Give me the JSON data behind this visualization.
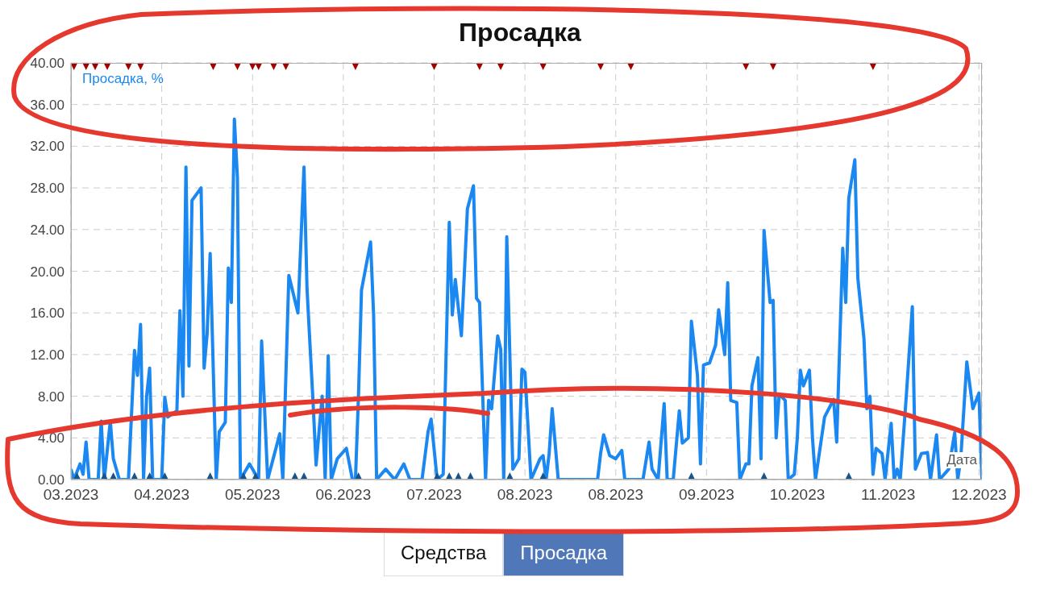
{
  "chart_data": {
    "type": "line",
    "title": "Просадка",
    "xlabel": "Дата",
    "legend": "top left",
    "grid": true,
    "xlim": [
      "2023-03-04",
      "2023-12-30"
    ],
    "ylim": [
      0,
      40
    ],
    "xticks": [
      {
        "value": "2023-03-04",
        "label": "03.2023"
      },
      {
        "value": "2023-04-03",
        "label": "04.2023"
      },
      {
        "value": "2023-05-03",
        "label": "05.2023"
      },
      {
        "value": "2023-06-02",
        "label": "06.2023"
      },
      {
        "value": "2023-07-02",
        "label": "07.2023"
      },
      {
        "value": "2023-08-01",
        "label": "08.2023"
      },
      {
        "value": "2023-08-31",
        "label": "08.2023"
      },
      {
        "value": "2023-09-30",
        "label": "09.2023"
      },
      {
        "value": "2023-10-30",
        "label": "10.2023"
      },
      {
        "value": "2023-11-29",
        "label": "11.2023"
      },
      {
        "value": "2023-12-29",
        "label": "12.2023"
      }
    ],
    "yticks": [
      {
        "value": 0,
        "label": "0.00"
      },
      {
        "value": 4,
        "label": "4.00"
      },
      {
        "value": 8,
        "label": "8.00"
      },
      {
        "value": 12,
        "label": "12.00"
      },
      {
        "value": 16,
        "label": "16.00"
      },
      {
        "value": 20,
        "label": "20.00"
      },
      {
        "value": 24,
        "label": "24.00"
      },
      {
        "value": 28,
        "label": "28.00"
      },
      {
        "value": 32,
        "label": "32.00"
      },
      {
        "value": 36,
        "label": "36.00"
      },
      {
        "value": 40,
        "label": "40.00"
      }
    ],
    "annotations": [
      "Средства",
      "Просадка"
    ],
    "series": [
      {
        "name": "Просадка, %",
        "color": "#1a88f0",
        "marker": "none",
        "x": [
          "2023-03-04",
          "2023-03-05",
          "2023-03-07",
          "2023-03-08",
          "2023-03-09",
          "2023-03-10",
          "2023-03-13",
          "2023-03-14",
          "2023-03-15",
          "2023-03-17",
          "2023-03-18",
          "2023-03-20",
          "2023-03-23",
          "2023-03-25",
          "2023-03-26",
          "2023-03-27",
          "2023-03-28",
          "2023-03-29",
          "2023-03-30",
          "2023-03-31",
          "2023-04-03",
          "2023-04-04",
          "2023-04-05",
          "2023-04-08",
          "2023-04-09",
          "2023-04-10",
          "2023-04-11",
          "2023-04-12",
          "2023-04-13",
          "2023-04-16",
          "2023-04-17",
          "2023-04-18",
          "2023-04-19",
          "2023-04-21",
          "2023-04-22",
          "2023-04-24",
          "2023-04-25",
          "2023-04-26",
          "2023-04-27",
          "2023-04-28",
          "2023-04-29",
          "2023-05-02",
          "2023-05-05",
          "2023-05-06",
          "2023-05-08",
          "2023-05-12",
          "2023-05-13",
          "2023-05-15",
          "2023-05-18",
          "2023-05-20",
          "2023-05-21",
          "2023-05-23",
          "2023-05-24",
          "2023-05-26",
          "2023-05-27",
          "2023-05-28",
          "2023-05-29",
          "2023-05-31",
          "2023-06-03",
          "2023-06-05",
          "2023-06-06",
          "2023-06-07",
          "2023-06-08",
          "2023-06-11",
          "2023-06-12",
          "2023-06-13",
          "2023-06-16",
          "2023-06-19",
          "2023-06-22",
          "2023-06-24",
          "2023-06-28",
          "2023-06-30",
          "2023-07-01",
          "2023-07-03",
          "2023-07-05",
          "2023-07-07",
          "2023-07-08",
          "2023-07-09",
          "2023-07-11",
          "2023-07-13",
          "2023-07-15",
          "2023-07-16",
          "2023-07-17",
          "2023-07-19",
          "2023-07-20",
          "2023-07-21",
          "2023-07-23",
          "2023-07-24",
          "2023-07-25",
          "2023-07-26",
          "2023-07-28",
          "2023-07-30",
          "2023-07-31",
          "2023-08-01",
          "2023-08-03",
          "2023-08-06",
          "2023-08-07",
          "2023-08-08",
          "2023-08-09",
          "2023-08-10",
          "2023-08-12",
          "2023-08-25",
          "2023-08-26",
          "2023-08-27",
          "2023-08-29",
          "2023-08-31",
          "2023-09-02",
          "2023-09-03",
          "2023-09-09",
          "2023-09-11",
          "2023-09-12",
          "2023-09-14",
          "2023-09-16",
          "2023-09-17",
          "2023-09-19",
          "2023-09-21",
          "2023-09-22",
          "2023-09-24",
          "2023-09-25",
          "2023-09-27",
          "2023-09-28",
          "2023-09-29",
          "2023-10-01",
          "2023-10-03",
          "2023-10-04",
          "2023-10-05",
          "2023-10-06",
          "2023-10-07",
          "2023-10-08",
          "2023-10-10",
          "2023-10-11",
          "2023-10-13",
          "2023-10-14",
          "2023-10-15",
          "2023-10-17",
          "2023-10-18",
          "2023-10-19",
          "2023-10-21",
          "2023-10-22",
          "2023-10-23",
          "2023-10-24",
          "2023-10-26",
          "2023-10-27",
          "2023-10-29",
          "2023-10-30",
          "2023-10-31",
          "2023-11-01",
          "2023-11-03",
          "2023-11-04",
          "2023-11-05",
          "2023-11-08",
          "2023-11-11",
          "2023-11-12",
          "2023-11-14",
          "2023-11-15",
          "2023-11-16",
          "2023-11-18",
          "2023-11-19",
          "2023-11-21",
          "2023-11-22",
          "2023-11-23",
          "2023-11-24",
          "2023-11-25",
          "2023-11-27",
          "2023-11-28",
          "2023-11-30",
          "2023-12-01",
          "2023-12-02",
          "2023-12-03",
          "2023-12-05",
          "2023-12-07",
          "2023-12-08",
          "2023-12-10",
          "2023-12-12",
          "2023-12-13",
          "2023-12-15",
          "2023-12-16",
          "2023-12-19",
          "2023-12-21",
          "2023-12-22",
          "2023-12-23",
          "2023-12-25",
          "2023-12-27",
          "2023-12-29",
          "2023-12-30"
        ],
        "values": [
          1,
          0,
          1.5,
          0.5,
          3.6,
          0,
          0,
          5.6,
          0,
          5.6,
          2,
          0,
          0,
          12.4,
          10,
          14.9,
          0,
          8,
          10.7,
          0,
          0,
          7.9,
          6,
          6.6,
          16.2,
          8,
          30,
          10.9,
          26.8,
          28,
          10.7,
          14,
          21.7,
          0,
          4.6,
          5.5,
          20.3,
          17,
          34.6,
          29,
          0,
          1.5,
          0,
          13.3,
          0,
          4.4,
          0,
          19.6,
          16,
          30,
          18.3,
          7.4,
          1.4,
          8,
          0,
          11.9,
          0,
          2,
          3,
          0,
          0,
          8,
          18.2,
          22.8,
          15.8,
          0,
          1,
          0,
          1.5,
          0,
          0,
          4.6,
          5.8,
          0,
          0.5,
          24.7,
          15.8,
          19.2,
          13.8,
          26,
          28.2,
          17.4,
          17,
          0,
          7.6,
          6.8,
          13.8,
          12.5,
          0,
          23.3,
          1,
          2,
          10.6,
          10.3,
          0,
          2,
          2.3,
          0,
          2.5,
          6.8,
          0,
          0,
          2.5,
          4.3,
          2.3,
          2,
          2.8,
          0,
          0,
          3.6,
          1,
          0,
          7.3,
          0,
          0,
          6.6,
          3.5,
          4,
          15.2,
          10,
          1.5,
          11,
          11.2,
          12.9,
          16.3,
          14.2,
          12,
          18.9,
          7.6,
          7.4,
          0,
          1.5,
          1.5,
          9,
          11.7,
          2,
          23.9,
          17,
          17.2,
          4,
          8.2,
          7.6,
          0,
          0.5,
          4,
          10.5,
          9,
          10.5,
          4,
          0,
          6,
          7.7,
          3.6,
          22.2,
          17,
          27,
          30.7,
          19.3,
          13.6,
          6.8,
          8,
          0.5,
          3,
          2.5,
          0,
          5.4,
          0,
          1,
          0,
          8,
          16.6,
          1,
          2.5,
          2.6,
          0,
          4.3,
          0,
          1,
          4.5,
          0,
          2,
          11.3,
          6.8,
          8.3,
          0
        ]
      },
      {
        "type": "scatter",
        "color": "#a30000",
        "marker": "triangle",
        "x": [
          "2023-03-05",
          "2023-03-09",
          "2023-03-12",
          "2023-03-16",
          "2023-03-23",
          "2023-03-27",
          "2023-04-20",
          "2023-04-28",
          "2023-05-03",
          "2023-05-05",
          "2023-05-10",
          "2023-05-14",
          "2023-06-06",
          "2023-07-02",
          "2023-07-17",
          "2023-07-24",
          "2023-08-07",
          "2023-08-26",
          "2023-09-05",
          "2023-10-13",
          "2023-10-22",
          "2023-11-24"
        ],
        "values": [
          40,
          40,
          40,
          40,
          40,
          40,
          40,
          40,
          40,
          40,
          40,
          40,
          40,
          40,
          40,
          40,
          40,
          40,
          40,
          40,
          40,
          40
        ]
      },
      {
        "type": "scatter",
        "color": "#17548a",
        "marker": "triangle",
        "x": [
          "2023-03-06",
          "2023-03-15",
          "2023-03-18",
          "2023-03-25",
          "2023-03-30",
          "2023-04-04",
          "2023-04-19",
          "2023-04-30",
          "2023-05-04",
          "2023-05-17",
          "2023-05-20",
          "2023-06-07",
          "2023-07-03",
          "2023-07-07",
          "2023-07-10",
          "2023-07-14",
          "2023-07-27",
          "2023-08-07",
          "2023-09-25",
          "2023-10-19",
          "2023-11-16"
        ],
        "values": [
          0,
          0,
          0,
          0,
          0,
          0,
          0,
          0,
          0,
          0,
          0,
          0,
          0,
          0,
          0,
          0,
          0,
          0,
          0,
          0,
          0
        ]
      }
    ]
  }
}
